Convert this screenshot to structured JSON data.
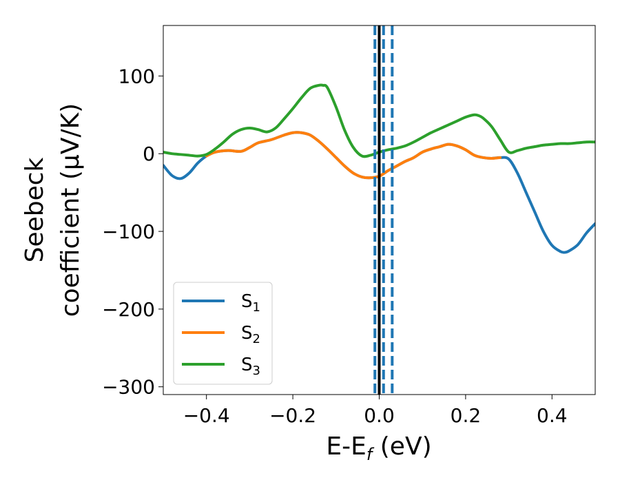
{
  "chart_data": {
    "type": "line",
    "xlabel": {
      "main": "E-E",
      "sub": "f",
      "unit": " (eV)"
    },
    "ylabel": {
      "line1": "Seebeck",
      "line2": "coefficient  (μV/K)"
    },
    "xlim": [
      -0.5,
      0.5
    ],
    "ylim": [
      -310,
      165
    ],
    "xticks": [
      -0.4,
      -0.2,
      0.0,
      0.2,
      0.4
    ],
    "xtick_labels": [
      "−0.4",
      "−0.2",
      "0.0",
      "0.2",
      "0.4"
    ],
    "yticks": [
      -300,
      -200,
      -100,
      0,
      100
    ],
    "ytick_labels": [
      "−300",
      "−200",
      "−100",
      "0",
      "100"
    ],
    "grid": false,
    "legend_position": "lower-left",
    "vlines": [
      {
        "x": 0.0,
        "color": "#000000",
        "style": "solid"
      },
      {
        "x": -0.01,
        "color": "#1f77b4",
        "style": "dashed"
      },
      {
        "x": 0.01,
        "color": "#1f77b4",
        "style": "dashed"
      },
      {
        "x": 0.03,
        "color": "#1f77b4",
        "style": "dashed"
      }
    ],
    "series": [
      {
        "name": "S",
        "sub": "1",
        "color": "#1f77b4",
        "x": [
          -0.5,
          -0.48,
          -0.46,
          -0.44,
          -0.42,
          -0.4,
          -0.38,
          -0.35,
          -0.32,
          -0.3,
          -0.28,
          -0.25,
          -0.22,
          -0.2,
          -0.18,
          -0.16,
          -0.14,
          -0.12,
          -0.1,
          -0.08,
          -0.06,
          -0.04,
          -0.02,
          0.0,
          0.02,
          0.04,
          0.06,
          0.08,
          0.1,
          0.12,
          0.14,
          0.16,
          0.18,
          0.2,
          0.22,
          0.24,
          0.26,
          0.28,
          0.3,
          0.32,
          0.34,
          0.36,
          0.38,
          0.4,
          0.42,
          0.43,
          0.44,
          0.46,
          0.48,
          0.5
        ],
        "y": [
          -15,
          -28,
          -32,
          -25,
          -12,
          -3,
          2,
          4,
          3,
          8,
          14,
          18,
          24,
          27,
          27,
          24,
          16,
          6,
          -5,
          -16,
          -25,
          -30,
          -31,
          -29,
          -22,
          -16,
          -10,
          -5,
          2,
          6,
          9,
          12,
          10,
          5,
          -2,
          -5,
          -6,
          -5,
          -7,
          -25,
          -50,
          -75,
          -100,
          -118,
          -126,
          -127,
          -125,
          -117,
          -102,
          -90
        ]
      },
      {
        "name": "S",
        "sub": "2",
        "color": "#ff7f0e",
        "x": [
          -0.4,
          -0.38,
          -0.35,
          -0.32,
          -0.3,
          -0.28,
          -0.25,
          -0.22,
          -0.2,
          -0.18,
          -0.16,
          -0.14,
          -0.12,
          -0.1,
          -0.08,
          -0.06,
          -0.04,
          -0.02,
          0.0,
          0.02,
          0.04,
          0.06,
          0.08,
          0.1,
          0.12,
          0.14,
          0.16,
          0.18,
          0.2,
          0.22,
          0.24,
          0.26,
          0.28
        ],
        "y": [
          -3,
          2,
          4,
          3,
          8,
          14,
          18,
          24,
          27,
          27,
          24,
          16,
          6,
          -5,
          -16,
          -25,
          -30,
          -31,
          -29,
          -22,
          -16,
          -10,
          -5,
          2,
          6,
          9,
          12,
          10,
          5,
          -2,
          -5,
          -6,
          -5
        ]
      },
      {
        "name": "S",
        "sub": "3",
        "color": "#2ca02c",
        "x": [
          -0.5,
          -0.48,
          -0.46,
          -0.44,
          -0.42,
          -0.4,
          -0.38,
          -0.36,
          -0.34,
          -0.32,
          -0.3,
          -0.28,
          -0.26,
          -0.24,
          -0.22,
          -0.2,
          -0.18,
          -0.16,
          -0.14,
          -0.13,
          -0.12,
          -0.1,
          -0.08,
          -0.06,
          -0.04,
          -0.02,
          0.0,
          0.02,
          0.04,
          0.06,
          0.08,
          0.1,
          0.12,
          0.14,
          0.16,
          0.18,
          0.2,
          0.22,
          0.23,
          0.24,
          0.26,
          0.28,
          0.3,
          0.32,
          0.34,
          0.36,
          0.38,
          0.4,
          0.42,
          0.44,
          0.46,
          0.48,
          0.5
        ],
        "y": [
          2,
          0,
          -1,
          -2,
          -3,
          -1,
          6,
          15,
          25,
          31,
          33,
          31,
          28,
          33,
          45,
          58,
          72,
          84,
          88,
          88,
          85,
          60,
          30,
          8,
          -3,
          -2,
          2,
          5,
          7,
          10,
          15,
          21,
          27,
          32,
          37,
          42,
          47,
          50,
          49,
          46,
          35,
          18,
          2,
          4,
          7,
          9,
          11,
          12,
          13,
          13,
          14,
          15,
          15
        ]
      }
    ]
  }
}
